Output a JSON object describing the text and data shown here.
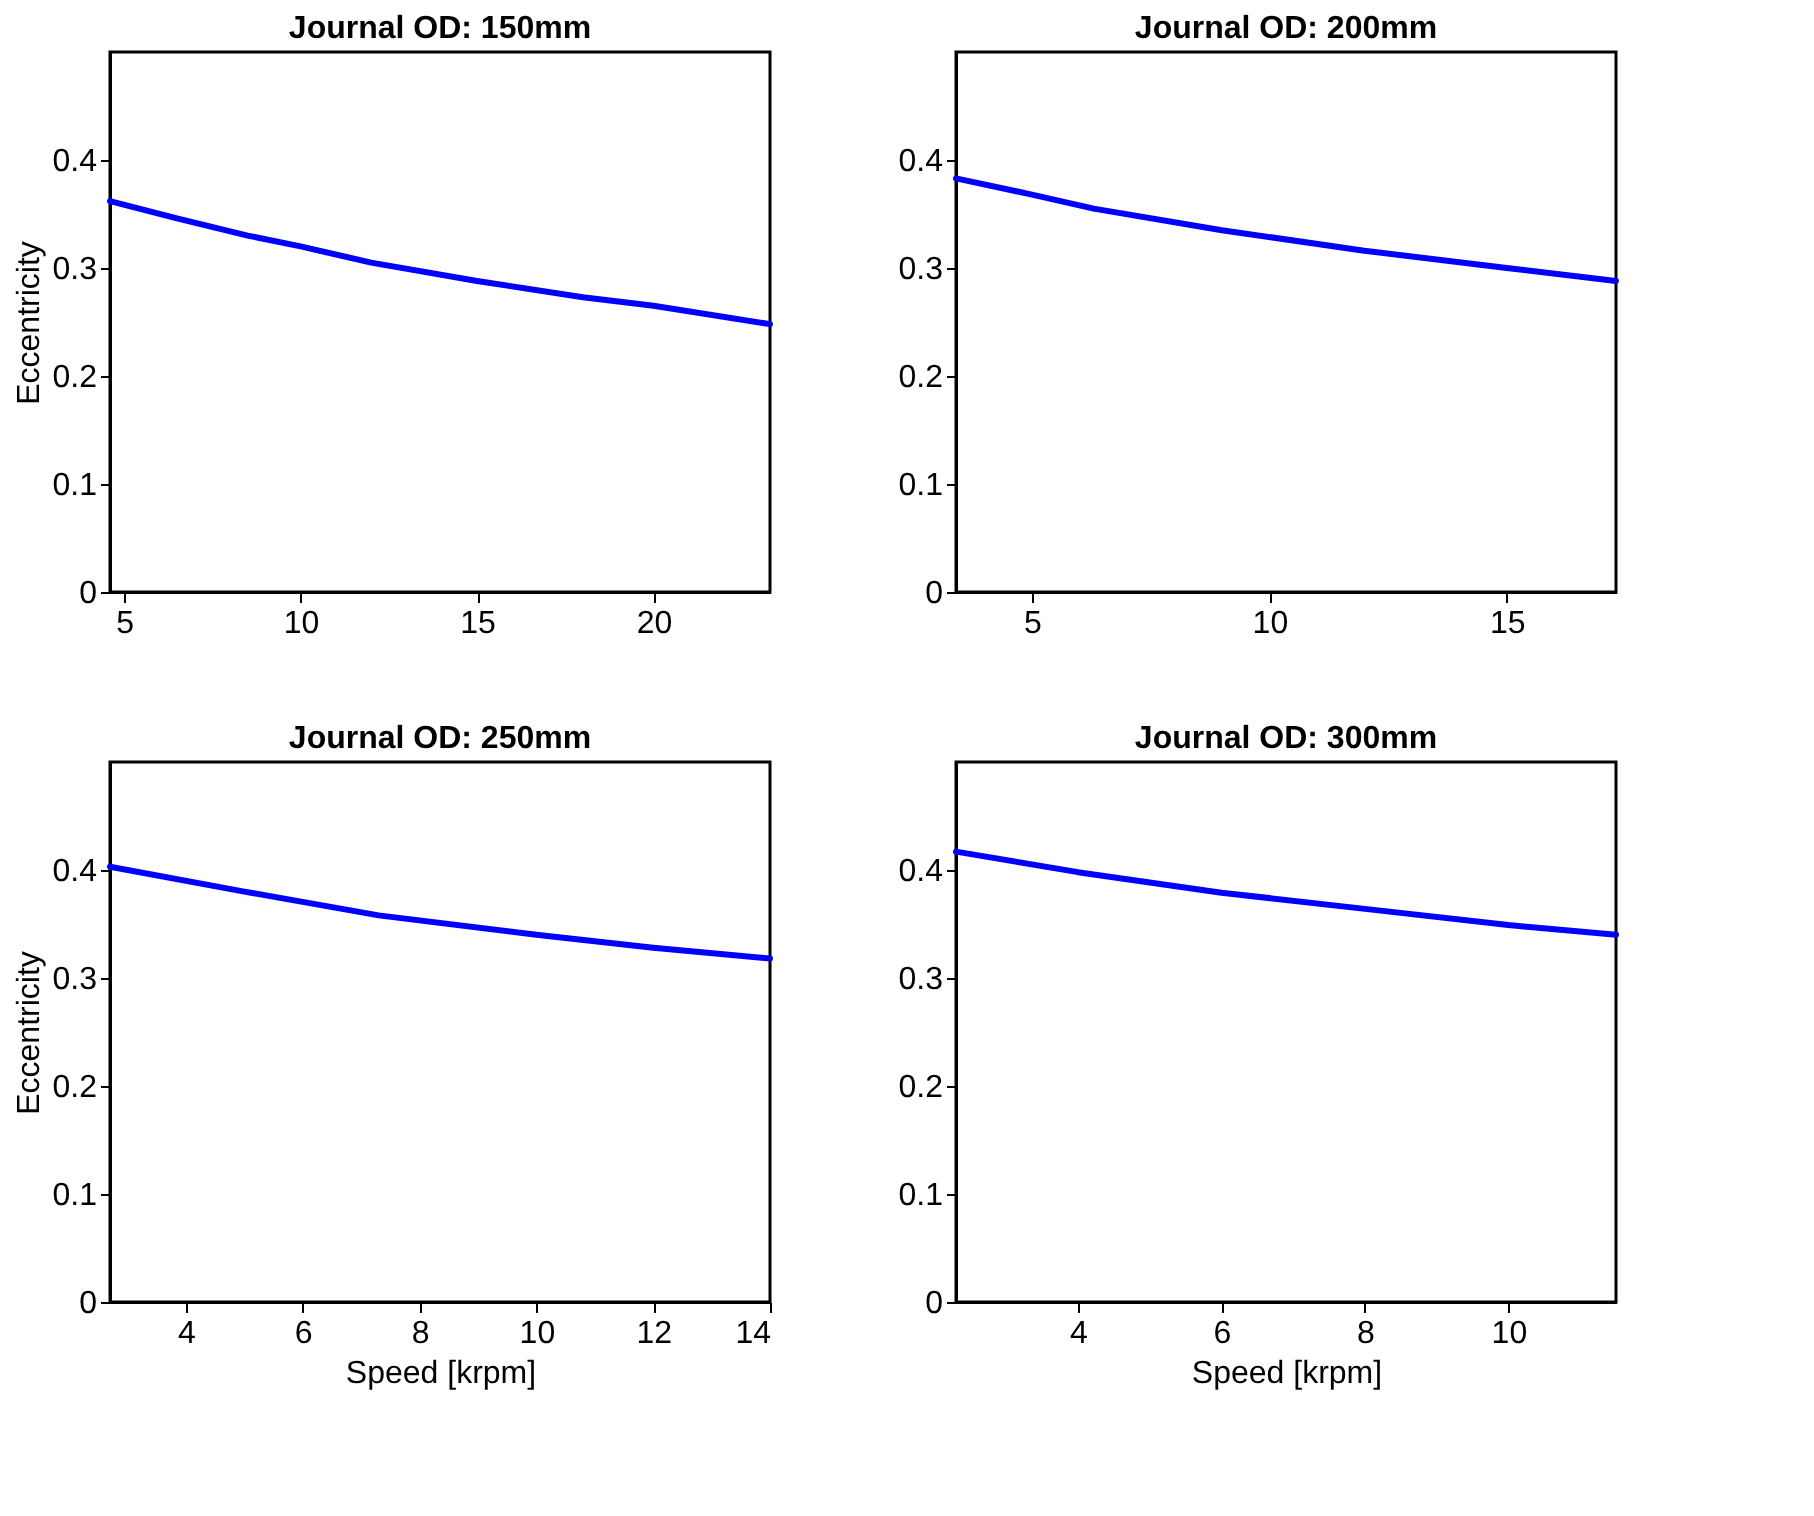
{
  "chart_data": [
    {
      "type": "line",
      "title": "Journal OD: 150mm",
      "ylabel": "Eccentricity",
      "x": [
        4.6,
        6.5,
        8.5,
        10,
        12,
        15,
        18,
        20,
        23.3
      ],
      "series": [
        {
          "color": "#0000ff",
          "values": [
            0.362,
            0.346,
            0.33,
            0.32,
            0.305,
            0.288,
            0.273,
            0.265,
            0.248
          ]
        }
      ],
      "xlim": [
        4.6,
        23.3
      ],
      "xticks": [
        5,
        10,
        15,
        20
      ],
      "ylim": [
        0,
        0.5
      ],
      "yticks": [
        0,
        0.1,
        0.2,
        0.3,
        0.4
      ],
      "grid": false,
      "line_style": "solid",
      "marker": "none"
    },
    {
      "type": "line",
      "title": "Journal OD: 200mm",
      "x": [
        3.4,
        5,
        6.3,
        9,
        12,
        15,
        17.3
      ],
      "series": [
        {
          "color": "#0000ff",
          "values": [
            0.383,
            0.368,
            0.355,
            0.335,
            0.316,
            0.3,
            0.288
          ]
        }
      ],
      "xlim": [
        3.4,
        17.3
      ],
      "xticks": [
        5,
        10,
        15
      ],
      "ylim": [
        0,
        0.5
      ],
      "yticks": [
        0,
        0.1,
        0.2,
        0.3,
        0.4
      ],
      "grid": false,
      "line_style": "solid",
      "marker": "none"
    },
    {
      "type": "line",
      "title": "Journal OD: 250mm",
      "xlabel": "Speed [krpm]",
      "ylabel": "Eccentricity",
      "x": [
        2.7,
        5,
        7.3,
        10,
        12,
        14
      ],
      "series": [
        {
          "color": "#0000ff",
          "values": [
            0.403,
            0.38,
            0.358,
            0.34,
            0.328,
            0.318
          ]
        }
      ],
      "xlim": [
        2.7,
        14
      ],
      "xticks": [
        4,
        6,
        8,
        10,
        12,
        14
      ],
      "ylim": [
        0,
        0.5
      ],
      "yticks": [
        0,
        0.1,
        0.2,
        0.3,
        0.4
      ],
      "grid": false,
      "line_style": "solid",
      "marker": "none"
    },
    {
      "type": "line",
      "title": "Journal OD: 300mm",
      "xlabel": "Speed [krpm]",
      "x": [
        2.3,
        4,
        6,
        8,
        10,
        11.5
      ],
      "series": [
        {
          "color": "#0000ff",
          "values": [
            0.417,
            0.398,
            0.379,
            0.364,
            0.349,
            0.34
          ]
        }
      ],
      "xlim": [
        2.3,
        11.5
      ],
      "xticks": [
        4,
        6,
        8,
        10
      ],
      "ylim": [
        0,
        0.5
      ],
      "yticks": [
        0,
        0.1,
        0.2,
        0.3,
        0.4
      ],
      "grid": false,
      "line_style": "solid",
      "marker": "none"
    }
  ]
}
